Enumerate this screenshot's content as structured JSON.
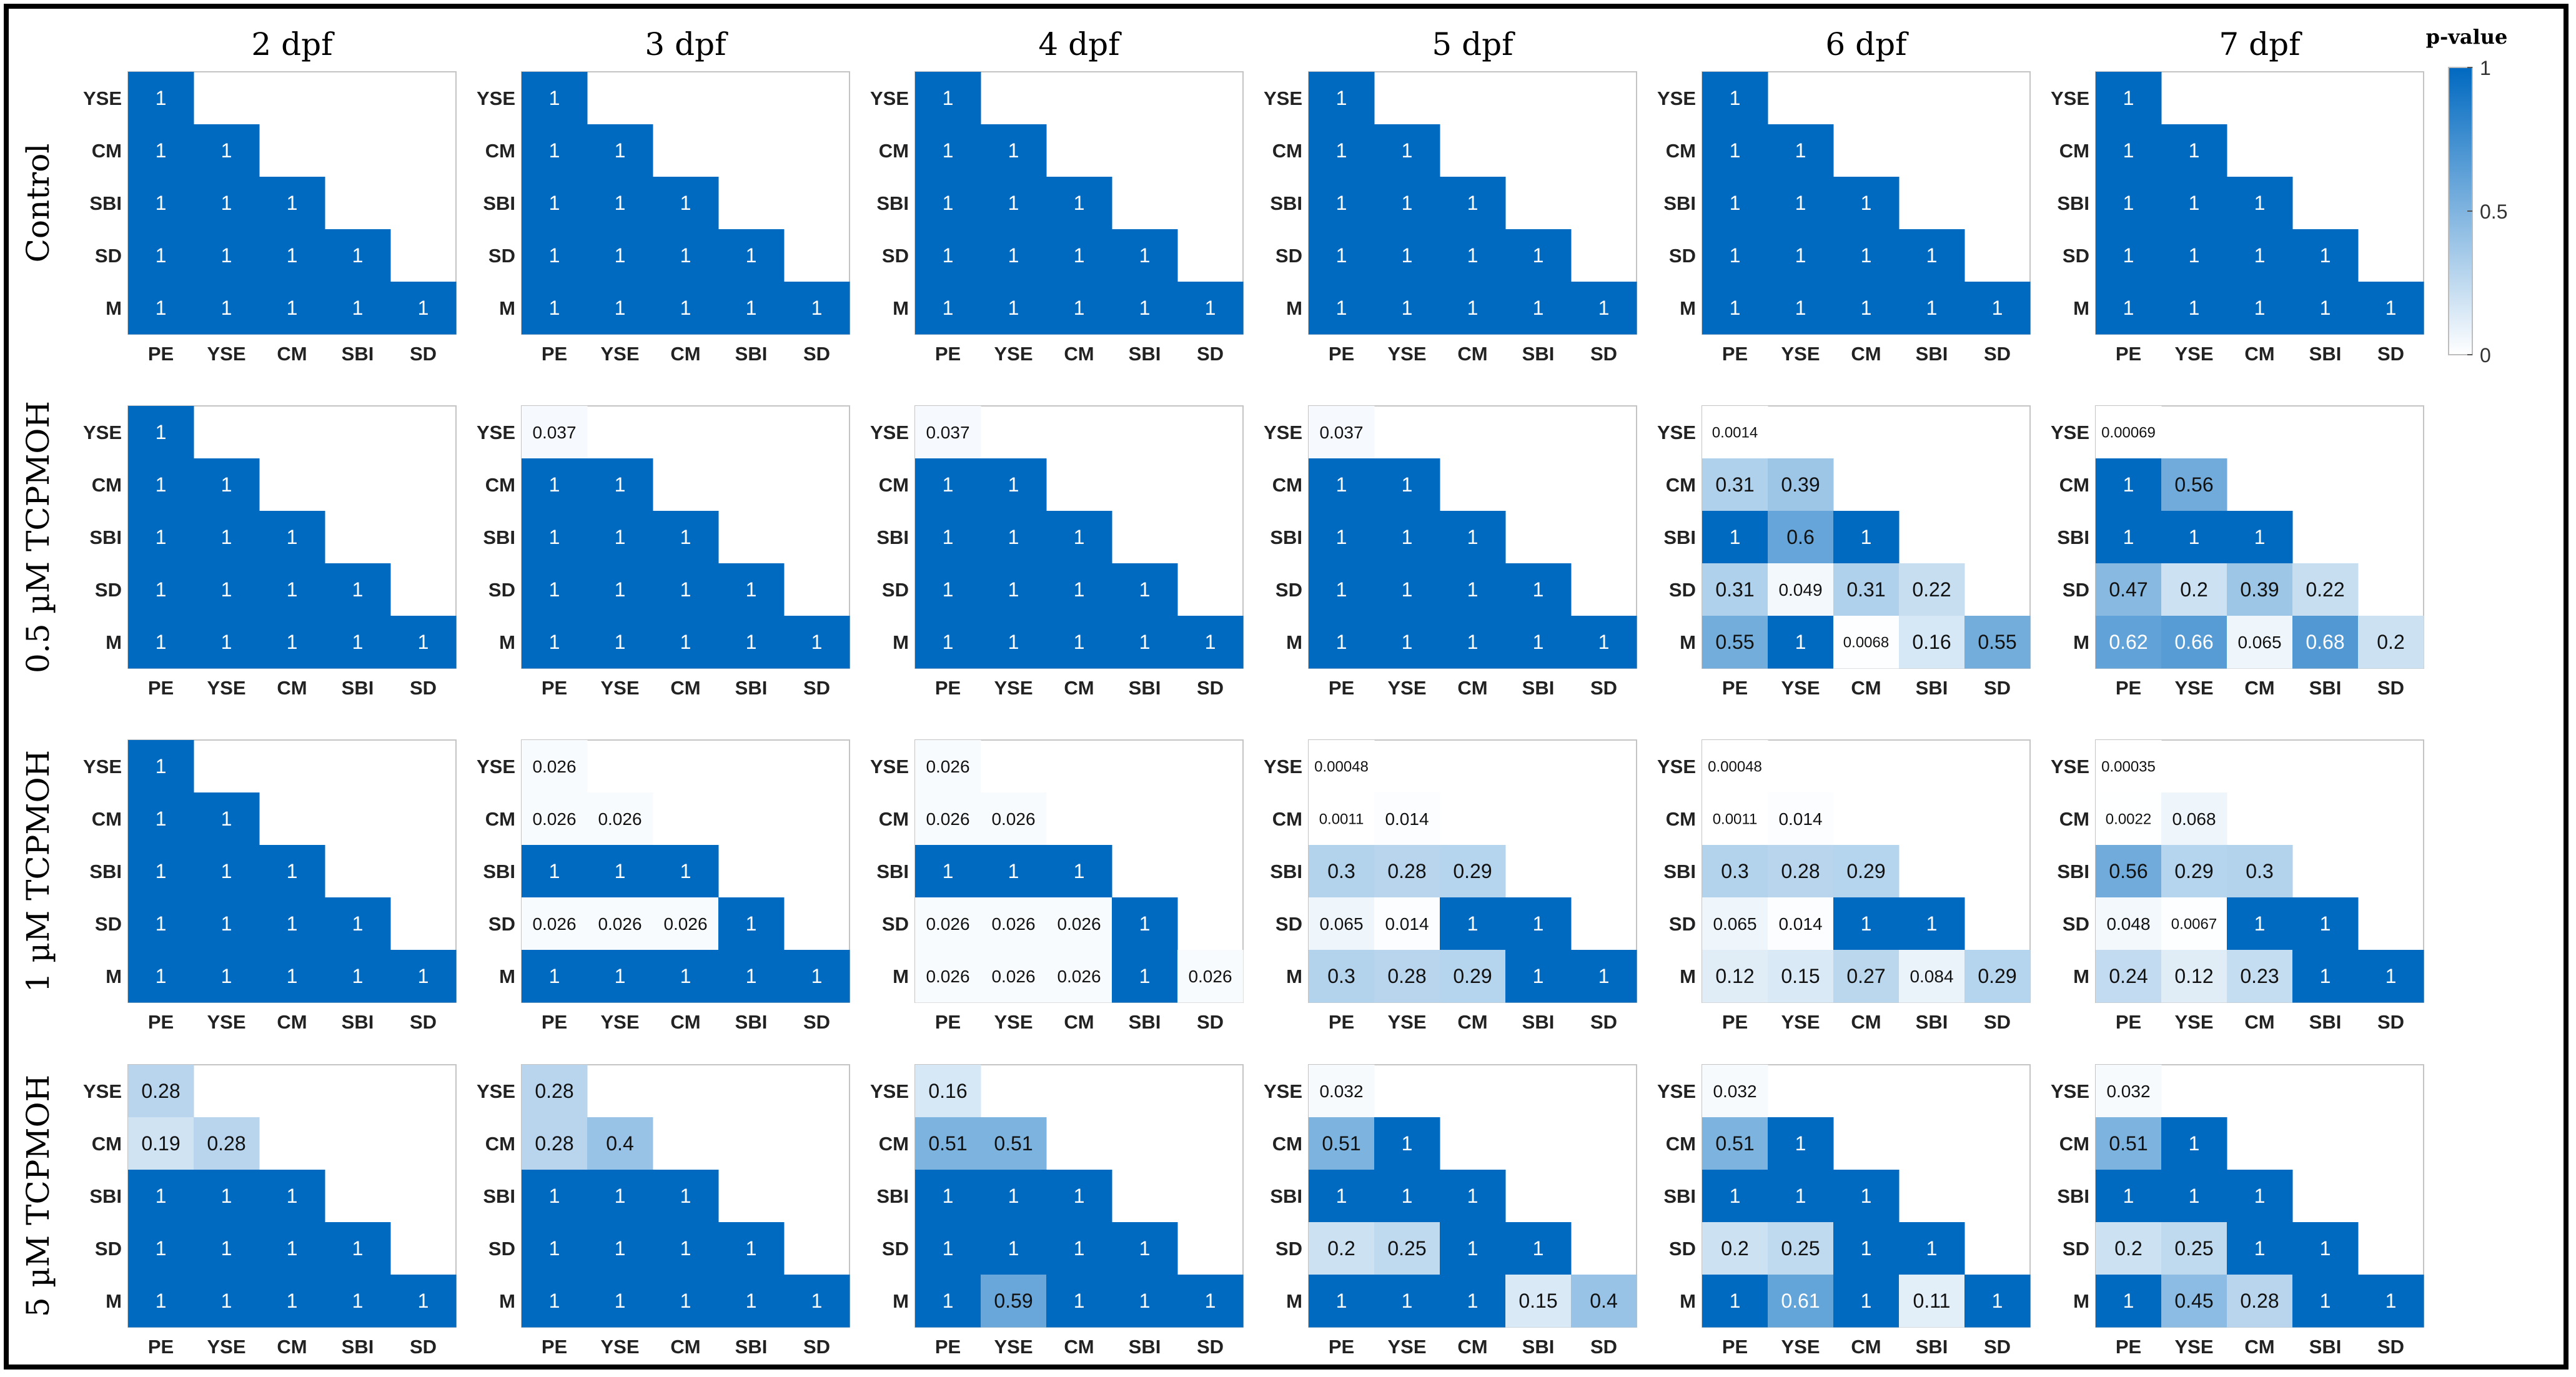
{
  "figure": {
    "colorbar": {
      "title": "p-value",
      "ticks": [
        "1",
        "0.5",
        "0"
      ],
      "color_high": "#0069c0",
      "color_low": "#ffffff"
    }
  },
  "chart_data": {
    "type": "heatmap",
    "columns": [
      "2 dpf",
      "3 dpf",
      "4 dpf",
      "5 dpf",
      "6 dpf",
      "7 dpf"
    ],
    "rows": [
      "Control",
      "0.5 µM TCPMOH",
      "1 µM TCPMOH",
      "5 µM TCPMOH"
    ],
    "y_labels": [
      "YSE",
      "CM",
      "SBI",
      "SD",
      "M"
    ],
    "x_labels": [
      "PE",
      "YSE",
      "CM",
      "SBI",
      "SD"
    ],
    "value_range": [
      0,
      1
    ],
    "panels": [
      [
        [
          [
            "1"
          ],
          [
            "1",
            "1"
          ],
          [
            "1",
            "1",
            "1"
          ],
          [
            "1",
            "1",
            "1",
            "1"
          ],
          [
            "1",
            "1",
            "1",
            "1",
            "1"
          ]
        ],
        [
          [
            "1"
          ],
          [
            "1",
            "1"
          ],
          [
            "1",
            "1",
            "1"
          ],
          [
            "1",
            "1",
            "1",
            "1"
          ],
          [
            "1",
            "1",
            "1",
            "1",
            "1"
          ]
        ],
        [
          [
            "1"
          ],
          [
            "1",
            "1"
          ],
          [
            "1",
            "1",
            "1"
          ],
          [
            "1",
            "1",
            "1",
            "1"
          ],
          [
            "1",
            "1",
            "1",
            "1",
            "1"
          ]
        ],
        [
          [
            "1"
          ],
          [
            "1",
            "1"
          ],
          [
            "1",
            "1",
            "1"
          ],
          [
            "1",
            "1",
            "1",
            "1"
          ],
          [
            "1",
            "1",
            "1",
            "1",
            "1"
          ]
        ],
        [
          [
            "1"
          ],
          [
            "1",
            "1"
          ],
          [
            "1",
            "1",
            "1"
          ],
          [
            "1",
            "1",
            "1",
            "1"
          ],
          [
            "1",
            "1",
            "1",
            "1",
            "1"
          ]
        ],
        [
          [
            "1"
          ],
          [
            "1",
            "1"
          ],
          [
            "1",
            "1",
            "1"
          ],
          [
            "1",
            "1",
            "1",
            "1"
          ],
          [
            "1",
            "1",
            "1",
            "1",
            "1"
          ]
        ]
      ],
      [
        [
          [
            "1"
          ],
          [
            "1",
            "1"
          ],
          [
            "1",
            "1",
            "1"
          ],
          [
            "1",
            "1",
            "1",
            "1"
          ],
          [
            "1",
            "1",
            "1",
            "1",
            "1"
          ]
        ],
        [
          [
            "0.037"
          ],
          [
            "1",
            "1"
          ],
          [
            "1",
            "1",
            "1"
          ],
          [
            "1",
            "1",
            "1",
            "1"
          ],
          [
            "1",
            "1",
            "1",
            "1",
            "1"
          ]
        ],
        [
          [
            "0.037"
          ],
          [
            "1",
            "1"
          ],
          [
            "1",
            "1",
            "1"
          ],
          [
            "1",
            "1",
            "1",
            "1"
          ],
          [
            "1",
            "1",
            "1",
            "1",
            "1"
          ]
        ],
        [
          [
            "0.037"
          ],
          [
            "1",
            "1"
          ],
          [
            "1",
            "1",
            "1"
          ],
          [
            "1",
            "1",
            "1",
            "1"
          ],
          [
            "1",
            "1",
            "1",
            "1",
            "1"
          ]
        ],
        [
          [
            "0.0014"
          ],
          [
            "0.31",
            "0.39"
          ],
          [
            "1",
            "0.6",
            "1"
          ],
          [
            "0.31",
            "0.049",
            "0.31",
            "0.22"
          ],
          [
            "0.55",
            "1",
            "0.0068",
            "0.16",
            "0.55"
          ]
        ],
        [
          [
            "0.00069"
          ],
          [
            "1",
            "0.56"
          ],
          [
            "1",
            "1",
            "1"
          ],
          [
            "0.47",
            "0.2",
            "0.39",
            "0.22"
          ],
          [
            "0.62",
            "0.66",
            "0.065",
            "0.68",
            "0.2"
          ]
        ]
      ],
      [
        [
          [
            "1"
          ],
          [
            "1",
            "1"
          ],
          [
            "1",
            "1",
            "1"
          ],
          [
            "1",
            "1",
            "1",
            "1"
          ],
          [
            "1",
            "1",
            "1",
            "1",
            "1"
          ]
        ],
        [
          [
            "0.026"
          ],
          [
            "0.026",
            "0.026"
          ],
          [
            "1",
            "1",
            "1"
          ],
          [
            "0.026",
            "0.026",
            "0.026",
            "1"
          ],
          [
            "1",
            "1",
            "1",
            "1",
            "1"
          ]
        ],
        [
          [
            "0.026"
          ],
          [
            "0.026",
            "0.026"
          ],
          [
            "1",
            "1",
            "1"
          ],
          [
            "0.026",
            "0.026",
            "0.026",
            "1"
          ],
          [
            "0.026",
            "0.026",
            "0.026",
            "1",
            "0.026"
          ]
        ],
        [
          [
            "0.00048"
          ],
          [
            "0.0011",
            "0.014"
          ],
          [
            "0.3",
            "0.28",
            "0.29"
          ],
          [
            "0.065",
            "0.014",
            "1",
            "1"
          ],
          [
            "0.3",
            "0.28",
            "0.29",
            "1",
            "1"
          ]
        ],
        [
          [
            "0.00048"
          ],
          [
            "0.0011",
            "0.014"
          ],
          [
            "0.3",
            "0.28",
            "0.29"
          ],
          [
            "0.065",
            "0.014",
            "1",
            "1"
          ],
          [
            "0.12",
            "0.15",
            "0.27",
            "0.084",
            "0.29"
          ]
        ],
        [
          [
            "0.00035"
          ],
          [
            "0.0022",
            "0.068"
          ],
          [
            "0.56",
            "0.29",
            "0.3"
          ],
          [
            "0.048",
            "0.0067",
            "1",
            "1"
          ],
          [
            "0.24",
            "0.12",
            "0.23",
            "1",
            "1"
          ]
        ]
      ],
      [
        [
          [
            "0.28"
          ],
          [
            "0.19",
            "0.28"
          ],
          [
            "1",
            "1",
            "1"
          ],
          [
            "1",
            "1",
            "1",
            "1"
          ],
          [
            "1",
            "1",
            "1",
            "1",
            "1"
          ]
        ],
        [
          [
            "0.28"
          ],
          [
            "0.28",
            "0.4"
          ],
          [
            "1",
            "1",
            "1"
          ],
          [
            "1",
            "1",
            "1",
            "1"
          ],
          [
            "1",
            "1",
            "1",
            "1",
            "1"
          ]
        ],
        [
          [
            "0.16"
          ],
          [
            "0.51",
            "0.51"
          ],
          [
            "1",
            "1",
            "1"
          ],
          [
            "1",
            "1",
            "1",
            "1"
          ],
          [
            "1",
            "0.59",
            "1",
            "1",
            "1"
          ]
        ],
        [
          [
            "0.032"
          ],
          [
            "0.51",
            "1"
          ],
          [
            "1",
            "1",
            "1"
          ],
          [
            "0.2",
            "0.25",
            "1",
            "1"
          ],
          [
            "1",
            "1",
            "1",
            "0.15",
            "0.4"
          ]
        ],
        [
          [
            "0.032"
          ],
          [
            "0.51",
            "1"
          ],
          [
            "1",
            "1",
            "1"
          ],
          [
            "0.2",
            "0.25",
            "1",
            "1"
          ],
          [
            "1",
            "0.61",
            "1",
            "0.11",
            "1"
          ]
        ],
        [
          [
            "0.032"
          ],
          [
            "0.51",
            "1"
          ],
          [
            "1",
            "1",
            "1"
          ],
          [
            "0.2",
            "0.25",
            "1",
            "1"
          ],
          [
            "1",
            "0.45",
            "0.28",
            "1",
            "1"
          ]
        ]
      ]
    ]
  }
}
